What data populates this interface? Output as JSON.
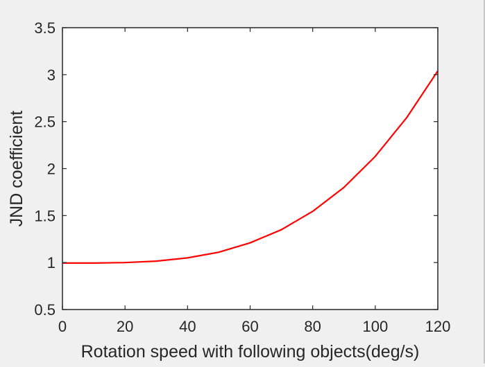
{
  "chart_data": {
    "type": "line",
    "title": "",
    "xlabel": "Rotation speed with following objects(deg/s)",
    "ylabel": "JND coefficient",
    "xlim": [
      0,
      120
    ],
    "ylim": [
      0.5,
      3.5
    ],
    "xticks": [
      0,
      20,
      40,
      60,
      80,
      100,
      120
    ],
    "xtick_labels": [
      "0",
      "20",
      "40",
      "60",
      "80",
      "100",
      "120"
    ],
    "yticks": [
      0.5,
      1,
      1.5,
      2,
      2.5,
      3,
      3.5
    ],
    "ytick_labels": [
      "0.5",
      "1",
      "1.5",
      "2",
      "2.5",
      "3",
      "3.5"
    ],
    "grid": false,
    "legend": "none",
    "series": [
      {
        "color": "#ff0000",
        "x": [
          0,
          10,
          20,
          30,
          40,
          50,
          60,
          70,
          80,
          90,
          100,
          110,
          120
        ],
        "y": [
          0.995,
          0.995,
          1.0,
          1.015,
          1.05,
          1.11,
          1.21,
          1.35,
          1.545,
          1.8,
          2.13,
          2.54,
          3.04
        ]
      }
    ]
  }
}
